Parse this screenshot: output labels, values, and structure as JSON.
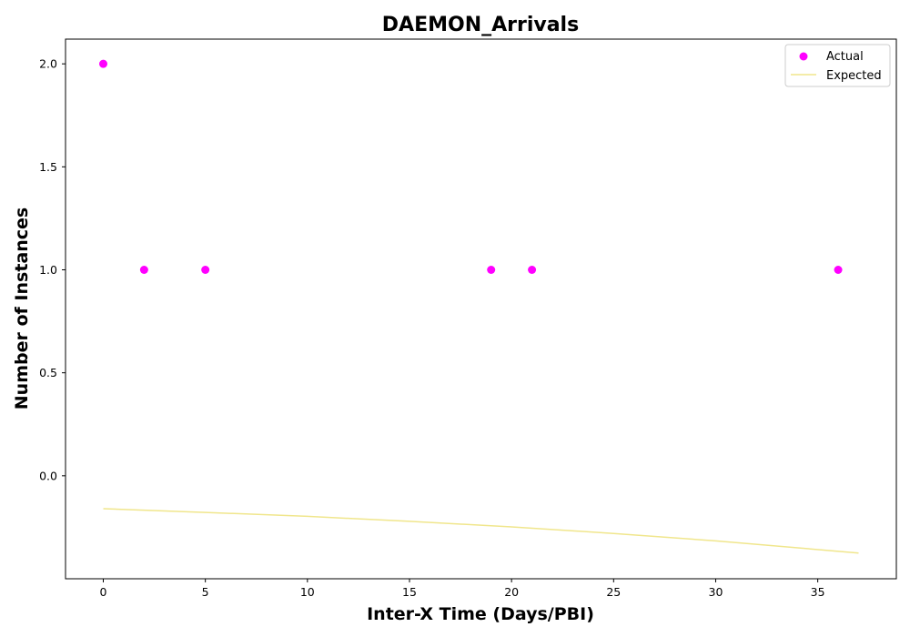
{
  "chart_data": {
    "type": "scatter",
    "title": "DAEMON_Arrivals",
    "xlabel": "Inter-X Time (Days/PBI)",
    "ylabel": "Number of Instances",
    "xlim": [
      -1.85,
      38.85
    ],
    "ylim": [
      -0.5,
      2.12
    ],
    "xticks": [
      0,
      5,
      10,
      15,
      20,
      25,
      30,
      35
    ],
    "yticks": [
      0.0,
      0.5,
      1.0,
      1.5,
      2.0
    ],
    "xtick_labels": [
      "0",
      "5",
      "10",
      "15",
      "20",
      "25",
      "30",
      "35"
    ],
    "ytick_labels": [
      "0.0",
      "0.5",
      "1.0",
      "1.5",
      "2.0"
    ],
    "grid": false,
    "legend_position": "top-right",
    "series": [
      {
        "name": "Actual",
        "kind": "scatter",
        "color": "#ff00ff",
        "x": [
          0,
          2,
          5,
          19,
          21,
          36
        ],
        "y": [
          2,
          1,
          1,
          1,
          1,
          1
        ]
      },
      {
        "name": "Expected",
        "kind": "line",
        "color": "#f0e68c",
        "x": [
          0,
          5,
          10,
          15,
          20,
          25,
          30,
          37
        ],
        "y": [
          -0.16,
          -0.178,
          -0.197,
          -0.221,
          -0.248,
          -0.28,
          -0.316,
          -0.375
        ]
      }
    ]
  }
}
